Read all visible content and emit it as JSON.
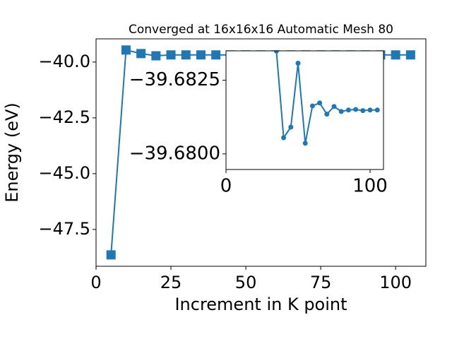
{
  "chart_data": [
    {
      "type": "line",
      "title": "Converged at 16x16x16 Automatic Mesh 80",
      "xlabel": "Increment in K point",
      "ylabel": "Energy (eV)",
      "marker": "square",
      "x": [
        5,
        10,
        15,
        20,
        25,
        30,
        35,
        40,
        45,
        50,
        55,
        60,
        65,
        70,
        75,
        80,
        85,
        90,
        95,
        100,
        105
      ],
      "series": [
        {
          "color": "#1f77b4",
          "values": [
            -48.64,
            -39.46,
            -39.62,
            -39.72,
            -39.68,
            -39.68,
            -39.68,
            -39.68,
            -39.68,
            -39.68,
            -39.68,
            -39.68,
            -39.68,
            -39.68,
            -39.68,
            -39.68,
            -39.68,
            -39.68,
            -39.68,
            -39.68,
            -39.68
          ]
        }
      ],
      "xlim": [
        0,
        110.1
      ],
      "ylim": [
        -49.15,
        -38.96
      ],
      "xticks": [
        0,
        25,
        50,
        75,
        100
      ],
      "yticks": [
        {
          "value": -40,
          "label": "−40.0"
        },
        {
          "value": -42.5,
          "label": "−42.5"
        },
        {
          "value": -45,
          "label": "−45.0"
        },
        {
          "value": -47.5,
          "label": "−47.5"
        }
      ]
    },
    {
      "type": "line",
      "marker": "circle",
      "x": [
        35,
        40,
        45,
        50,
        55,
        60,
        65,
        70,
        75,
        80,
        85,
        90,
        95,
        100,
        105
      ],
      "series": [
        {
          "color": "#1f77b4",
          "values": [
            -39.68349,
            -39.68055,
            -39.68091,
            -39.68308,
            -39.68036,
            -39.68163,
            -39.68173,
            -39.68135,
            -39.68161,
            -39.68144,
            -39.68149,
            -39.68151,
            -39.68147,
            -39.68149,
            -39.68149
          ]
        }
      ],
      "xlim": [
        0,
        109.3
      ],
      "ylim": [
        -39.67947,
        -39.6835
      ],
      "xticks": [
        0,
        100
      ],
      "yticks": [
        {
          "value": -39.6825,
          "label": "−39.6825"
        },
        {
          "value": -39.68,
          "label": "−39.6800"
        }
      ]
    }
  ]
}
